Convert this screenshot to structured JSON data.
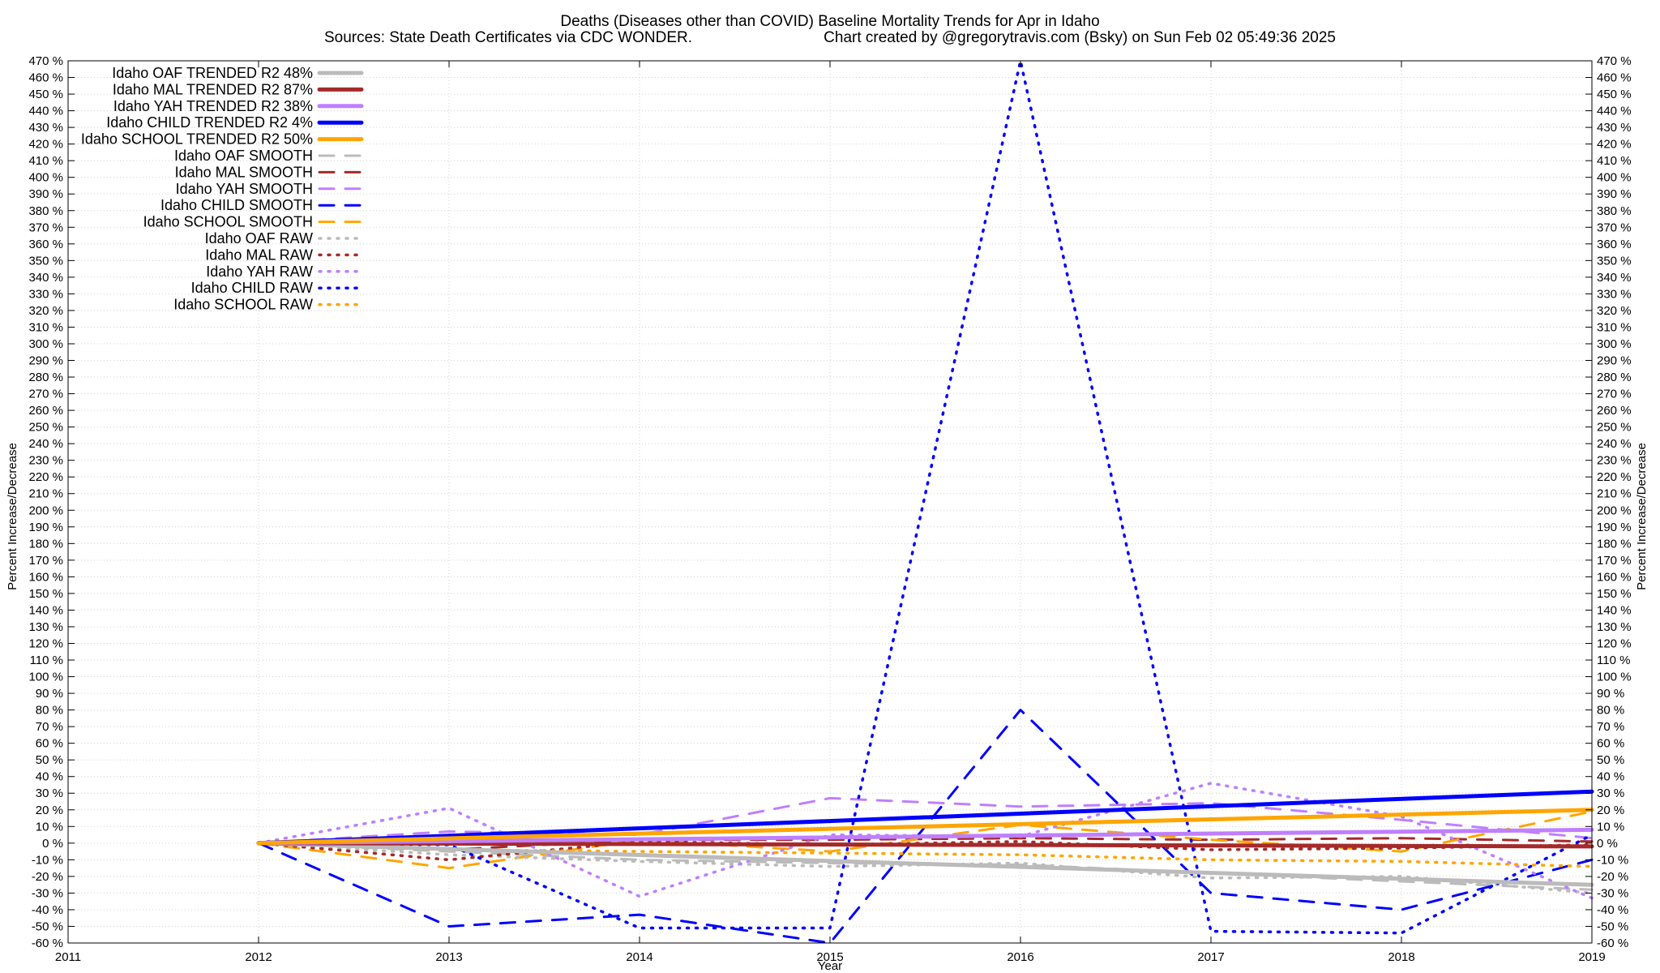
{
  "chart_data": {
    "type": "line",
    "title": "Deaths (Diseases other than COVID)  Baseline Mortality Trends for Apr in Idaho",
    "subtitle_left": "Sources: State Death Certificates via CDC WONDER.",
    "subtitle_right": "Chart created by @gregorytravis.com (Bsky) on Sun Feb 02 05:49:36 2025",
    "xlabel": "Year",
    "ylabel": "Percent Increase/Decrease",
    "y2label": "Percent Increase/Decrease",
    "xlim": [
      2011,
      2019
    ],
    "ylim": [
      -60,
      470
    ],
    "ytick_step": 10,
    "ytick_suffix": " %",
    "x_ticks": [
      "2011",
      "2012",
      "2013",
      "2014",
      "2015",
      "2016",
      "2017",
      "2018",
      "2019"
    ],
    "grid": true,
    "legend_position": "top-left",
    "series": [
      {
        "name": "Idaho OAF TRENDED R2  48%",
        "style": "solid",
        "color": "#bbbbbb",
        "x": [
          2012,
          2019
        ],
        "y": [
          0,
          -25
        ]
      },
      {
        "name": "Idaho MAL TRENDED R2  87%",
        "style": "solid",
        "color": "#a52a2a",
        "x": [
          2012,
          2019
        ],
        "y": [
          0,
          -2
        ]
      },
      {
        "name": "Idaho YAH TRENDED R2  38%",
        "style": "solid",
        "color": "#bf7fff",
        "x": [
          2012,
          2019
        ],
        "y": [
          0,
          8
        ]
      },
      {
        "name": "Idaho CHILD TRENDED R2  4%",
        "style": "solid",
        "color": "#0000ff",
        "x": [
          2012,
          2019
        ],
        "y": [
          0,
          31
        ]
      },
      {
        "name": "Idaho SCHOOL TRENDED R2  50%",
        "style": "solid",
        "color": "#ffa500",
        "x": [
          2012,
          2019
        ],
        "y": [
          0,
          20
        ]
      },
      {
        "name": "Idaho OAF SMOOTH",
        "style": "dashed",
        "color": "#bbbbbb",
        "x": [
          2012,
          2013,
          2014,
          2015,
          2016,
          2017,
          2018,
          2019
        ],
        "y": [
          0,
          -5,
          -10,
          -12,
          -13,
          -18,
          -23,
          -28
        ]
      },
      {
        "name": "Idaho MAL SMOOTH",
        "style": "dashed",
        "color": "#a52a2a",
        "x": [
          2012,
          2013,
          2014,
          2015,
          2016,
          2017,
          2018,
          2019
        ],
        "y": [
          0,
          -4,
          2,
          2,
          3,
          2,
          3,
          1
        ]
      },
      {
        "name": "Idaho YAH SMOOTH",
        "style": "dashed",
        "color": "#bf7fff",
        "x": [
          2012,
          2013,
          2014,
          2015,
          2016,
          2017,
          2018,
          2019
        ],
        "y": [
          0,
          7,
          5,
          27,
          22,
          24,
          14,
          3
        ]
      },
      {
        "name": "Idaho CHILD SMOOTH",
        "style": "dashed",
        "color": "#0000ff",
        "x": [
          2012,
          2013,
          2014,
          2015,
          2016,
          2017,
          2018,
          2019
        ],
        "y": [
          0,
          -50,
          -43,
          -60,
          80,
          -30,
          -40,
          -10
        ]
      },
      {
        "name": "Idaho SCHOOL SMOOTH",
        "style": "dashed",
        "color": "#ffa500",
        "x": [
          2012,
          2013,
          2014,
          2015,
          2016,
          2017,
          2018,
          2019
        ],
        "y": [
          0,
          -15,
          2,
          -5,
          11,
          2,
          -5,
          19
        ]
      },
      {
        "name": "Idaho OAF RAW",
        "style": "dotted",
        "color": "#bbbbbb",
        "x": [
          2012,
          2013,
          2014,
          2015,
          2016,
          2017,
          2018,
          2019
        ],
        "y": [
          0,
          -7,
          -11,
          -14,
          -12,
          -21,
          -20,
          -30
        ]
      },
      {
        "name": "Idaho MAL RAW",
        "style": "dotted",
        "color": "#a52a2a",
        "x": [
          2012,
          2013,
          2014,
          2015,
          2016,
          2017,
          2018,
          2019
        ],
        "y": [
          0,
          -10,
          1,
          -1,
          1,
          -4,
          -3,
          -1
        ]
      },
      {
        "name": "Idaho YAH RAW",
        "style": "dotted",
        "color": "#bf7fff",
        "x": [
          2012,
          2013,
          2014,
          2015,
          2016,
          2017,
          2018,
          2019
        ],
        "y": [
          0,
          21,
          -32,
          5,
          4,
          36,
          16,
          -33
        ]
      },
      {
        "name": "Idaho CHILD RAW",
        "style": "dotted",
        "color": "#0000ff",
        "x": [
          2012,
          2013,
          2014,
          2015,
          2016,
          2017,
          2018,
          2019
        ],
        "y": [
          0,
          -1,
          -51,
          -51,
          470,
          -53,
          -54,
          5
        ]
      },
      {
        "name": "Idaho SCHOOL RAW",
        "style": "dotted",
        "color": "#ffa500",
        "x": [
          2012,
          2013,
          2014,
          2015,
          2016,
          2017,
          2018,
          2019
        ],
        "y": [
          0,
          -4,
          -5,
          -6,
          -7,
          -10,
          -11,
          -14
        ]
      }
    ]
  }
}
